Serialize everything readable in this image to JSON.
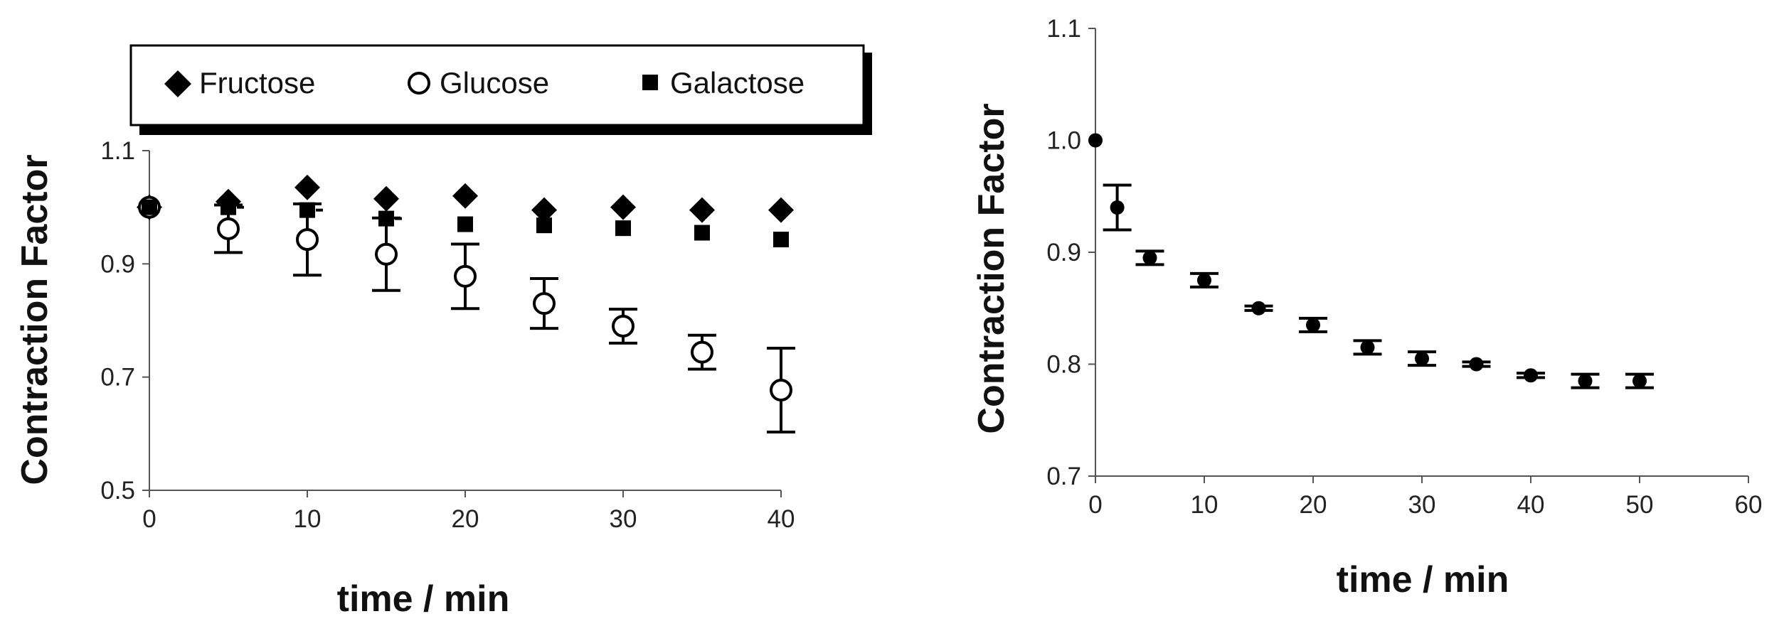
{
  "chart_data": [
    {
      "type": "scatter",
      "title": "",
      "xlabel": "time / min",
      "ylabel": "Contraction Factor",
      "xlim": [
        0,
        40
      ],
      "ylim": [
        0.5,
        1.1
      ],
      "x_ticks": [
        "0",
        "10",
        "20",
        "30",
        "40"
      ],
      "y_ticks": [
        "0.5",
        "0.7",
        "0.9",
        "1.1"
      ],
      "legend_position": "top",
      "grid": false,
      "series": [
        {
          "name": "Fructose",
          "marker": "diamond",
          "x": [
            0,
            5,
            10,
            15,
            20,
            25,
            30,
            35,
            40
          ],
          "y": [
            1.0,
            1.01,
            1.035,
            1.015,
            1.02,
            0.995,
            1.0,
            0.995,
            0.995
          ],
          "err": [
            0,
            0,
            0,
            0,
            0,
            0,
            0,
            0,
            0
          ]
        },
        {
          "name": "Glucose",
          "marker": "open-circle",
          "x": [
            0,
            5,
            10,
            15,
            20,
            25,
            30,
            35,
            40
          ],
          "y": [
            1.0,
            0.962,
            0.943,
            0.917,
            0.878,
            0.83,
            0.79,
            0.744,
            0.677
          ],
          "err": [
            0,
            0.042,
            0.063,
            0.064,
            0.057,
            0.044,
            0.03,
            0.03,
            0.074
          ]
        },
        {
          "name": "Galactose",
          "marker": "square",
          "x": [
            0,
            5,
            10,
            15,
            20,
            25,
            30,
            35,
            40
          ],
          "y": [
            1.0,
            1.0,
            0.995,
            0.98,
            0.97,
            0.968,
            0.963,
            0.955,
            0.943
          ],
          "err": [
            0,
            0.008,
            0.013,
            0.018,
            0,
            0,
            0,
            0,
            0
          ]
        }
      ]
    },
    {
      "type": "scatter",
      "title": "",
      "xlabel": "time / min",
      "ylabel": "Contraction Factor",
      "xlim": [
        0,
        60
      ],
      "ylim": [
        0.7,
        1.1
      ],
      "x_ticks": [
        "0",
        "10",
        "20",
        "30",
        "40",
        "50",
        "60"
      ],
      "y_ticks": [
        "0.7",
        "0.8",
        "0.9",
        "1.0",
        "1.1"
      ],
      "grid": false,
      "series": [
        {
          "marker": "filled-circle",
          "x": [
            0,
            2,
            5,
            10,
            15,
            20,
            25,
            30,
            35,
            40,
            45,
            50
          ],
          "y": [
            1.0,
            0.94,
            0.895,
            0.875,
            0.85,
            0.835,
            0.815,
            0.805,
            0.8,
            0.79,
            0.785,
            0.785
          ],
          "err": [
            0,
            0.02,
            0.006,
            0.006,
            0.002,
            0.006,
            0.006,
            0.006,
            0.002,
            0.002,
            0.006,
            0.006
          ]
        }
      ]
    }
  ]
}
